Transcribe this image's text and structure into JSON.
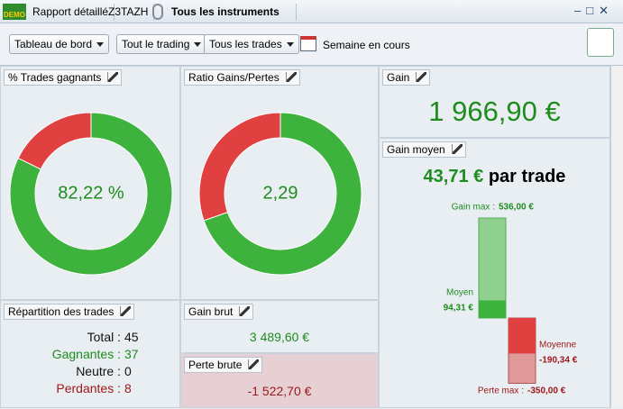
{
  "toolbar": {
    "report": "Rapport détaillé",
    "account": "Z3TAZH",
    "instruments": "Tous les instruments"
  },
  "filters": {
    "view": "Tableau de bord",
    "trading": "Tout le trading",
    "trades": "Tous les trades",
    "period": "Semaine en cours"
  },
  "panels": {
    "win_rate": {
      "title": "% Trades gagnants",
      "value": {
        "value": 82.22,
        "label": "82,22 %"
      }
    },
    "ratio": {
      "title": "Ratio Gains/Pertes",
      "value": {
        "value": 2.29,
        "label": "2,29"
      }
    },
    "gain": {
      "title": "Gain",
      "value": {
        "value": 1966.9,
        "label": "1 966,90 €"
      }
    },
    "avg_gain": {
      "title": "Gain moyen",
      "value": {
        "value": 43.71,
        "label": "43,71 €"
      },
      "suffix": "par trade",
      "max_gain_label": "Gain max :",
      "max_gain": {
        "value": 536,
        "label": "536,00 €"
      },
      "avg_win_label": "Moyen",
      "avg_win": {
        "value": 94.31,
        "label": "94,31 €"
      },
      "avg_loss_label": "Moyenne",
      "avg_loss": {
        "value": -190.34,
        "label": "-190,34 €"
      },
      "max_loss_label": "Perte max :",
      "max_loss": {
        "value": -350,
        "label": "-350,00 €"
      }
    },
    "breakdown": {
      "title": "Répartition des trades",
      "rows": [
        {
          "label": "Total :",
          "value": 45
        },
        {
          "label": "Gagnantes :",
          "value": 37
        },
        {
          "label": "Neutre :",
          "value": 0
        },
        {
          "label": "Perdantes :",
          "value": 8
        }
      ]
    },
    "gross_gain": {
      "title": "Gain brut",
      "value": {
        "value": 3489.6,
        "label": "3 489,60 €"
      }
    },
    "gross_loss": {
      "title": "Perte brute",
      "value": {
        "value": -1522.7,
        "label": "-1 522,70 €"
      }
    }
  }
}
